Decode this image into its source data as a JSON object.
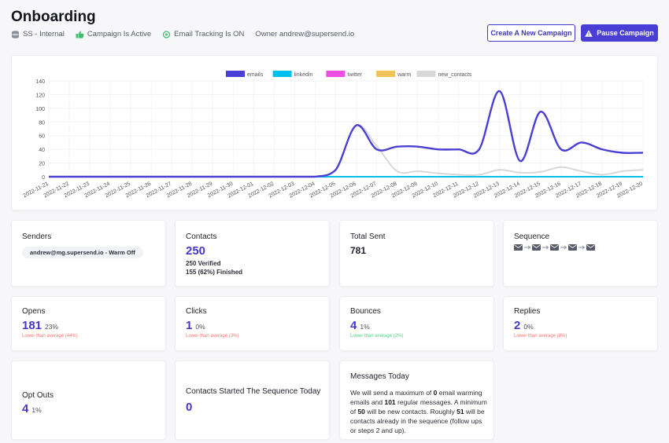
{
  "header": {
    "title": "Onboarding",
    "meta": [
      "SS - Internal",
      "Campaign Is Active",
      "Email Tracking Is ON",
      "Owner andrew@supersend.io"
    ],
    "create_label": "Create A New Campaign",
    "pause_label": "Pause Campaign"
  },
  "colors": {
    "accent": "#4a3fd4",
    "emails": "#4a3fd4",
    "linkedin": "#00c0ef",
    "twitter": "#ec4fe2",
    "warm": "#f2c35a",
    "new_contacts": "#d8d8d8"
  },
  "chart_data": {
    "type": "line",
    "categories": [
      "2022-11-21",
      "2022-11-22",
      "2022-11-23",
      "2022-11-24",
      "2022-11-25",
      "2022-11-26",
      "2022-11-27",
      "2022-11-28",
      "2022-11-29",
      "2022-11-30",
      "2022-12-01",
      "2022-12-02",
      "2022-12-03",
      "2022-12-04",
      "2022-12-05",
      "2022-12-06",
      "2022-12-07",
      "2022-12-08",
      "2022-12-09",
      "2022-12-10",
      "2022-12-11",
      "2022-12-12",
      "2022-12-13",
      "2022-12-14",
      "2022-12-15",
      "2022-12-16",
      "2022-12-17",
      "2022-12-18",
      "2022-12-19",
      "2022-12-20"
    ],
    "series": [
      {
        "name": "emails",
        "values": [
          0,
          0,
          0,
          0,
          0,
          0,
          0,
          0,
          0,
          0,
          0,
          0,
          0,
          0,
          10,
          75,
          40,
          44,
          44,
          40,
          40,
          40,
          125,
          23,
          95,
          40,
          50,
          40,
          35,
          35
        ]
      },
      {
        "name": "linkedin",
        "values": [
          0,
          0,
          0,
          0,
          0,
          0,
          0,
          0,
          0,
          0,
          0,
          0,
          0,
          0,
          0,
          0,
          0,
          0,
          0,
          0,
          0,
          0,
          0,
          0,
          0,
          0,
          0,
          0,
          0,
          0
        ]
      },
      {
        "name": "twitter",
        "values": [
          0,
          0,
          0,
          0,
          0,
          0,
          0,
          0,
          0,
          0,
          0,
          0,
          0,
          0,
          0,
          0,
          0,
          0,
          0,
          0,
          0,
          0,
          0,
          0,
          0,
          0,
          0,
          0,
          0,
          0
        ]
      },
      {
        "name": "warm",
        "values": [
          0,
          0,
          0,
          0,
          0,
          0,
          0,
          0,
          0,
          0,
          0,
          0,
          0,
          0,
          0,
          0,
          0,
          0,
          0,
          0,
          0,
          0,
          0,
          0,
          0,
          0,
          0,
          0,
          0,
          0
        ]
      },
      {
        "name": "new_contacts",
        "values": [
          0,
          0,
          0,
          0,
          0,
          0,
          0,
          0,
          0,
          0,
          0,
          0,
          0,
          0,
          10,
          75,
          45,
          8,
          8,
          5,
          3,
          3,
          10,
          6,
          7,
          14,
          8,
          3,
          8,
          10
        ]
      }
    ],
    "yticks": [
      0,
      20,
      40,
      60,
      80,
      100,
      120,
      140
    ],
    "ylim": [
      0,
      140
    ],
    "legend_position": "top-center"
  },
  "stats": {
    "senders": {
      "label": "Senders",
      "chip": "andrew@mg.supersend.io - Warm Off"
    },
    "contacts": {
      "label": "Contacts",
      "value": "250",
      "verified": "250 Verified",
      "finished": "155 (62%) Finished"
    },
    "total_sent": {
      "label": "Total Sent",
      "value": "781"
    },
    "sequence": {
      "label": "Sequence"
    },
    "opens": {
      "label": "Opens",
      "value": "181",
      "pct": "23%",
      "note": "Lower than average (44%)"
    },
    "clicks": {
      "label": "Clicks",
      "value": "1",
      "pct": "0%",
      "note": "Lower than average (3%)"
    },
    "bounces": {
      "label": "Bounces",
      "value": "4",
      "pct": "1%",
      "note": "Lower than average (2%)"
    },
    "replies": {
      "label": "Replies",
      "value": "2",
      "pct": "0%",
      "note": "Lower than average (8%)"
    },
    "opt_outs": {
      "label": "Opt Outs",
      "value": "4",
      "pct": "1%"
    },
    "started_today": {
      "label": "Contacts Started The Sequence Today",
      "value": "0"
    },
    "messages_today": {
      "label": "Messages Today",
      "t1": "We will send a maximum of ",
      "n1": "0",
      "t2": " email warming emails and ",
      "n2": "101",
      "t3": " regular messages. A minimum of ",
      "n3": "50",
      "t4": " will be new contacts. Roughly ",
      "n4": "51",
      "t5": " will be contacts already in the sequence (follow ups or steps 2 and up)."
    }
  }
}
